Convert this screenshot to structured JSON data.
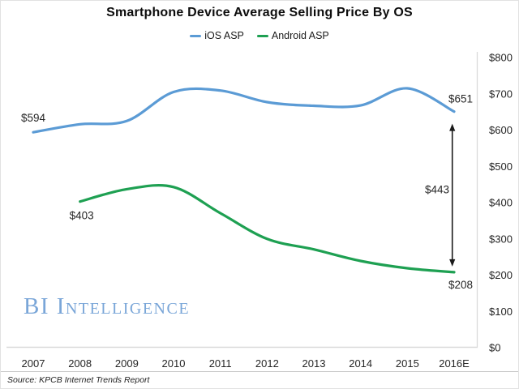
{
  "title": "Smartphone Device Average Selling Price By OS",
  "legend": [
    {
      "label": "iOS ASP",
      "color": "#5b9bd5"
    },
    {
      "label": "Android ASP",
      "color": "#1ea052"
    }
  ],
  "watermark": "BI Intelligence",
  "source": "Source: KPCB Internet Trends Report",
  "colors": {
    "ios_line": "#5b9bd5",
    "android_line": "#1ea052",
    "axis_line": "#d9d9d9",
    "tick_text": "#262626",
    "arrow": "#1a1a1a",
    "watermark_blue": "#7aa6d8"
  },
  "chart_data": {
    "type": "line",
    "title": "Smartphone Device Average Selling Price By OS",
    "categories": [
      "2007",
      "2008",
      "2009",
      "2010",
      "2011",
      "2012",
      "2013",
      "2014",
      "2015",
      "2016E"
    ],
    "series": [
      {
        "name": "iOS ASP",
        "color": "#5b9bd5",
        "values": [
          594,
          616,
          625,
          705,
          709,
          677,
          667,
          668,
          715,
          651
        ]
      },
      {
        "name": "Android ASP",
        "color": "#1ea052",
        "values": [
          null,
          403,
          437,
          443,
          371,
          300,
          271,
          239,
          219,
          208
        ]
      }
    ],
    "ylim": [
      0,
      800
    ],
    "ytick_step": 100,
    "y_tick_labels": [
      "$800",
      "$700",
      "$600",
      "$500",
      "$400",
      "$300",
      "$200",
      "$100",
      "$0"
    ],
    "y_axis_side": "right",
    "grid": false,
    "legend_position": "top",
    "annotations": {
      "ios_start_label": "$594",
      "android_start_label": "$403",
      "ios_end_label": "$651",
      "android_end_label": "$208",
      "gap_label": "$443",
      "gap_value": 443
    }
  }
}
